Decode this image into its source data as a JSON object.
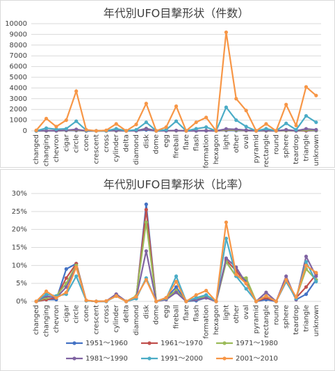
{
  "chart_data": [
    {
      "type": "line",
      "title": "年代別UFO目撃形状（件数）",
      "categories": [
        "changed",
        "changing",
        "chevron",
        "cigar",
        "circle",
        "cone",
        "crescent",
        "cross",
        "cylinder",
        "delta",
        "diamond",
        "disk",
        "dome",
        "egg",
        "fireball",
        "flare",
        "flash",
        "formation",
        "hexagon",
        "light",
        "other",
        "oval",
        "pyramid",
        "rectangle",
        "round",
        "sphere",
        "teardrop",
        "triangle",
        "unknown"
      ],
      "ylim": [
        0,
        10000
      ],
      "yticks": [
        0,
        1000,
        2000,
        3000,
        4000,
        5000,
        6000,
        7000,
        8000,
        9000,
        10000
      ],
      "grid": true,
      "series": [
        {
          "color": "#4472c4",
          "values": [
            0,
            2,
            2,
            30,
            35,
            1,
            0,
            0,
            6,
            0,
            3,
            90,
            0,
            3,
            12,
            0,
            1,
            3,
            0,
            35,
            25,
            20,
            0,
            2,
            0,
            20,
            2,
            6,
            20
          ]
        },
        {
          "color": "#c0504d",
          "values": [
            0,
            4,
            8,
            45,
            75,
            1,
            0,
            0,
            14,
            0,
            7,
            180,
            0,
            7,
            21,
            0,
            4,
            7,
            0,
            80,
            60,
            35,
            0,
            7,
            0,
            40,
            7,
            28,
            55
          ]
        },
        {
          "color": "#9bbb59",
          "values": [
            0,
            10,
            15,
            50,
            100,
            2,
            0,
            1,
            15,
            0,
            15,
            220,
            0,
            10,
            30,
            0,
            5,
            15,
            0,
            110,
            70,
            65,
            0,
            15,
            0,
            60,
            10,
            90,
            60
          ]
        },
        {
          "color": "#8064a2",
          "values": [
            0,
            22,
            15,
            60,
            140,
            3,
            0,
            1,
            30,
            0,
            15,
            210,
            0,
            8,
            38,
            0,
            8,
            15,
            0,
            180,
            140,
            75,
            0,
            38,
            0,
            105,
            8,
            190,
            105
          ]
        },
        {
          "color": "#4bacc6",
          "values": [
            0,
            250,
            150,
            200,
            900,
            50,
            0,
            0,
            200,
            0,
            100,
            800,
            0,
            100,
            900,
            0,
            200,
            350,
            0,
            2200,
            1000,
            400,
            0,
            200,
            0,
            700,
            100,
            1400,
            800
          ]
        },
        {
          "color": "#f79646",
          "values": [
            50,
            1150,
            400,
            1000,
            3700,
            100,
            0,
            50,
            650,
            0,
            600,
            2550,
            0,
            350,
            2300,
            0,
            800,
            1250,
            0,
            9200,
            3000,
            1900,
            0,
            650,
            0,
            2450,
            500,
            4100,
            3300
          ]
        }
      ]
    },
    {
      "type": "line",
      "title": "年代別UFO目撃形状（比率）",
      "categories": [
        "changed",
        "changing",
        "chevron",
        "cigar",
        "circle",
        "cone",
        "crescent",
        "cross",
        "cylinder",
        "delta",
        "diamond",
        "disk",
        "dome",
        "egg",
        "fireball",
        "flare",
        "flash",
        "formation",
        "hexagon",
        "light",
        "other",
        "oval",
        "pyramid",
        "rectangle",
        "round",
        "sphere",
        "teardrop",
        "triangle",
        "unknown"
      ],
      "ylim": [
        0,
        30
      ],
      "yticks": [
        {
          "value": 0,
          "label": "0%"
        },
        {
          "value": 5,
          "label": "5%"
        },
        {
          "value": 10,
          "label": "10%"
        },
        {
          "value": 15,
          "label": "15%"
        },
        {
          "value": 20,
          "label": "20%"
        },
        {
          "value": 25,
          "label": "25%"
        },
        {
          "value": 30,
          "label": "30%"
        }
      ],
      "grid": true,
      "series": [
        {
          "name": "1951～1960",
          "color": "#4472c4",
          "values": [
            0,
            0.5,
            0.5,
            9,
            10.5,
            0.2,
            0,
            0,
            2,
            0,
            0.8,
            27,
            0,
            1,
            4,
            0,
            0.2,
            1,
            0,
            11,
            7,
            6,
            0,
            0.5,
            0,
            6,
            0.5,
            2,
            6
          ]
        },
        {
          "name": "1961～1970",
          "color": "#c0504d",
          "values": [
            0,
            0.5,
            1,
            6.5,
            10.5,
            0.2,
            0,
            0,
            2,
            0,
            1,
            25.5,
            0,
            1,
            3,
            0,
            0.5,
            1,
            0,
            11.5,
            8.5,
            5,
            0,
            1,
            0,
            5.5,
            1,
            4,
            7.5
          ]
        },
        {
          "name": "1971～1980",
          "color": "#9bbb59",
          "values": [
            0,
            1,
            1.5,
            5,
            10,
            0.2,
            0,
            0.1,
            1.5,
            0,
            1.5,
            22,
            0,
            1,
            3,
            0,
            0.5,
            1.5,
            0,
            11,
            7,
            6.5,
            0,
            1.5,
            0,
            6,
            1,
            9,
            6
          ]
        },
        {
          "name": "1981～1990",
          "color": "#8064a2",
          "values": [
            0,
            1.5,
            1,
            4,
            9.5,
            0.2,
            0,
            0.1,
            2,
            0,
            1,
            14,
            0,
            0.5,
            2.5,
            0,
            0.5,
            1,
            0,
            12,
            9.5,
            5,
            0,
            2.5,
            0,
            7,
            0.5,
            12.5,
            7
          ]
        },
        {
          "name": "1991～2000",
          "color": "#4bacc6",
          "values": [
            0,
            2,
            1.5,
            2,
            7,
            0.2,
            0,
            0,
            1.5,
            0,
            0.8,
            6.5,
            0,
            0.8,
            7,
            0,
            1,
            1.8,
            0,
            17.5,
            7,
            3.5,
            0,
            1.5,
            0,
            5.5,
            0.8,
            11,
            5.5
          ]
        },
        {
          "name": "2001～2010",
          "color": "#f79646",
          "values": [
            0,
            2.8,
            1,
            2.5,
            9.5,
            0.3,
            0,
            0.1,
            1.5,
            0,
            1.3,
            6,
            0,
            1,
            5.5,
            0,
            1.8,
            3,
            0,
            22,
            7.5,
            5,
            0,
            1.5,
            0,
            6,
            1.2,
            10,
            8
          ]
        }
      ]
    }
  ]
}
